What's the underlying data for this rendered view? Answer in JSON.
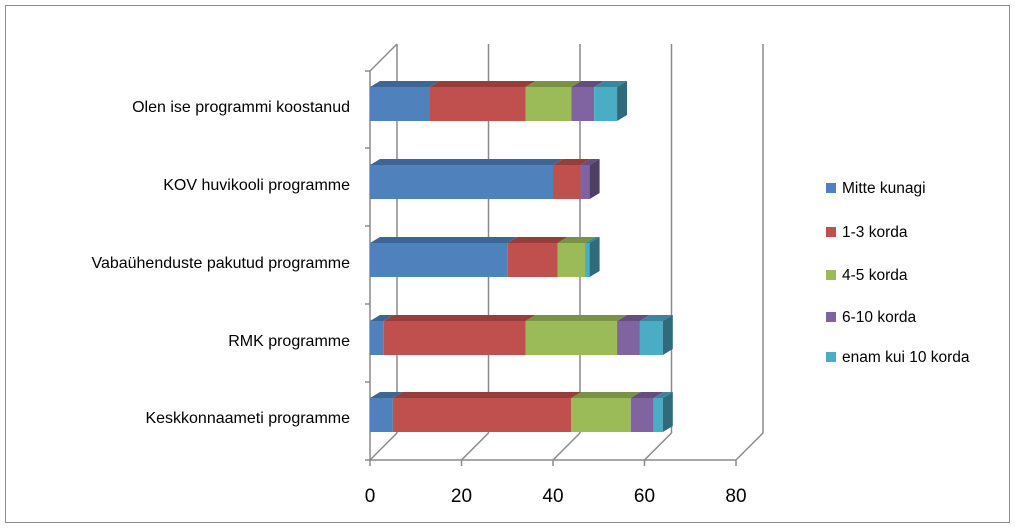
{
  "chart_data": {
    "type": "bar",
    "orientation": "horizontal",
    "stacked": true,
    "style": "3d",
    "categories": [
      "Olen ise programmi koostanud",
      "KOV huvikooli programme",
      "Vabaühenduste pakutud programme",
      "RMK programme",
      "Keskkonnaameti programme"
    ],
    "series": [
      {
        "name": "Mitte kunagi",
        "color": "#4f81bd",
        "values": [
          13,
          40,
          30,
          3,
          5
        ]
      },
      {
        "name": "1-3 korda",
        "color": "#c0504d",
        "values": [
          21,
          6,
          11,
          31,
          39
        ]
      },
      {
        "name": "4-5 korda",
        "color": "#9bbb59",
        "values": [
          10,
          0,
          6,
          20,
          13
        ]
      },
      {
        "name": "6-10  korda",
        "color": "#8064a2",
        "values": [
          5,
          2,
          0,
          5,
          5
        ]
      },
      {
        "name": "enam kui 10 korda",
        "color": "#4bacc6",
        "values": [
          5,
          0,
          1,
          5,
          2
        ]
      }
    ],
    "xlim": [
      0,
      80
    ],
    "xticks": [
      "0",
      "20",
      "40",
      "60",
      "80"
    ],
    "grid": true,
    "legend_position": "right"
  }
}
